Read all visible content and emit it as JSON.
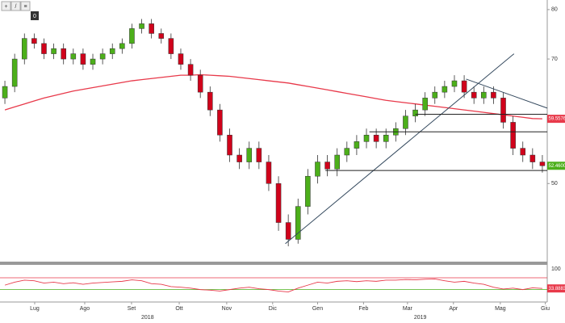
{
  "toolbar": [
    "+",
    "/",
    "≡",
    "0"
  ],
  "chart_data": {
    "type": "candlestick",
    "log_scale": true,
    "xlim": [
      -0.5,
      55.5
    ],
    "xticks": [
      {
        "value": 3.05,
        "label": "Lug"
      },
      {
        "value": 8.17,
        "label": "Ago"
      },
      {
        "value": 12.96,
        "label": "Set"
      },
      {
        "value": 17.84,
        "label": "Ott"
      },
      {
        "value": 22.7,
        "label": "Nov"
      },
      {
        "value": 27.4,
        "label": "Dic"
      },
      {
        "value": 32.0,
        "label": "Gen"
      },
      {
        "value": 36.7,
        "label": "Feb"
      },
      {
        "value": 41.2,
        "label": "Mar"
      },
      {
        "value": 45.9,
        "label": "Apr"
      },
      {
        "value": 50.7,
        "label": "Mag"
      },
      {
        "value": 55.3,
        "label": "Giu"
      }
    ],
    "year_ticks": [
      {
        "value": 14.6,
        "label": "2018"
      },
      {
        "value": 42.5,
        "label": "2019"
      }
    ],
    "ylim": [
      40.4,
      82.1
    ],
    "yticks": [
      50,
      70,
      80
    ],
    "up_color": "#4caf1a",
    "down_color": "#d0021b",
    "open": [
      63,
      65,
      70,
      74,
      73,
      71,
      72,
      70,
      71,
      69,
      70,
      71,
      72,
      73,
      76,
      77,
      75,
      74,
      71,
      69,
      67,
      64,
      61,
      57,
      54,
      53,
      55,
      53,
      50,
      45,
      43,
      47,
      51,
      53,
      52,
      54,
      55,
      56,
      57,
      56,
      57,
      58,
      60,
      61,
      63,
      64,
      65,
      66,
      64,
      63,
      64,
      63,
      59,
      55,
      54,
      53
    ],
    "high": [
      66,
      71,
      75,
      75,
      74,
      73,
      73,
      72,
      72,
      71,
      72,
      73,
      74,
      77,
      78,
      78,
      76,
      75,
      72,
      70,
      68,
      65,
      62,
      58,
      55,
      56,
      56,
      54,
      51,
      46,
      48,
      52,
      54,
      54,
      55,
      56,
      57,
      58,
      58,
      58,
      59,
      61,
      62,
      64,
      65,
      66,
      67,
      67,
      65,
      65,
      65,
      64,
      60,
      56,
      55,
      54
    ],
    "low": [
      62,
      64,
      69,
      72,
      70,
      70,
      69,
      69,
      68,
      68,
      69,
      70,
      71,
      72,
      75,
      74,
      73,
      70,
      68,
      66,
      63,
      60,
      56,
      53,
      52,
      52,
      52,
      49,
      44,
      42.2,
      42.5,
      46,
      50,
      51,
      51,
      53,
      54,
      55,
      55,
      55,
      56,
      57,
      59,
      60,
      62,
      63,
      64,
      63,
      62,
      62,
      62,
      58,
      54,
      53,
      52,
      51.5
    ],
    "close": [
      65,
      70,
      74,
      73,
      71,
      72,
      70,
      71,
      69,
      70,
      71,
      72,
      73,
      76,
      77,
      75,
      74,
      71,
      69,
      67,
      64,
      61,
      57,
      54,
      53,
      55,
      53,
      50,
      45,
      43,
      47,
      51,
      53,
      52,
      54,
      55,
      56,
      57,
      56,
      57,
      58,
      60,
      61,
      63,
      64,
      65,
      66,
      64,
      63,
      64,
      63,
      59,
      55,
      54,
      53,
      52.46
    ],
    "moving_average": {
      "color": "#e8394a",
      "values": [
        61,
        61.5,
        62,
        62.5,
        63,
        63.4,
        63.8,
        64.2,
        64.5,
        64.8,
        65.1,
        65.4,
        65.7,
        66,
        66.2,
        66.4,
        66.6,
        66.8,
        67,
        67,
        67.1,
        67,
        66.9,
        66.8,
        66.6,
        66.4,
        66.2,
        66,
        65.8,
        65.6,
        65.3,
        65,
        64.7,
        64.4,
        64.1,
        63.8,
        63.5,
        63.2,
        62.9,
        62.6,
        62.4,
        62.2,
        62,
        61.8,
        61.6,
        61.4,
        61.2,
        61,
        60.8,
        60.6,
        60.4,
        60.2,
        60,
        59.8,
        59.6,
        59.5576
      ]
    },
    "markers": [
      {
        "value": 59.5576,
        "label": "59.5576",
        "color": "#e8394a"
      },
      {
        "value": 52.46,
        "label": "52.4600",
        "color": "#4caf1a"
      }
    ],
    "trendlines": [
      {
        "x": [
          28.7,
          52.1
        ],
        "y": [
          42.5,
          71
        ],
        "color": "#34495e"
      },
      {
        "x": [
          47.2,
          55.5
        ],
        "y": [
          66.3,
          61.3
        ],
        "color": "#34495e"
      },
      {
        "x": [
          42.0,
          55.5
        ],
        "y": [
          60.3,
          60.3
        ],
        "color": "#222222"
      },
      {
        "x": [
          37.3,
          55.5
        ],
        "y": [
          57.5,
          57.5
        ],
        "color": "#222222"
      },
      {
        "x": [
          32.8,
          55.5
        ],
        "y": [
          51.8,
          51.8
        ],
        "color": "#222222"
      }
    ],
    "indicator": {
      "color": "#e8394a",
      "ylim": [
        0,
        100
      ],
      "yticks": [
        100
      ],
      "levels": [
        {
          "value": 70,
          "color": "#e8394a"
        },
        {
          "value": 30,
          "color": "#4caf1a"
        }
      ],
      "values": [
        45,
        55,
        62,
        60,
        52,
        55,
        50,
        53,
        48,
        52,
        54,
        56,
        58,
        63,
        60,
        50,
        48,
        40,
        38,
        35,
        30,
        28,
        25,
        30,
        35,
        38,
        33,
        30,
        25,
        22,
        35,
        45,
        55,
        52,
        58,
        60,
        57,
        60,
        58,
        62,
        62,
        64,
        63,
        65,
        66,
        60,
        55,
        58,
        52,
        48,
        38,
        32,
        35,
        30,
        36,
        33.8883
      ],
      "marker": {
        "value": 33.8883,
        "label": "33.8883",
        "color": "#e8394a"
      }
    }
  }
}
